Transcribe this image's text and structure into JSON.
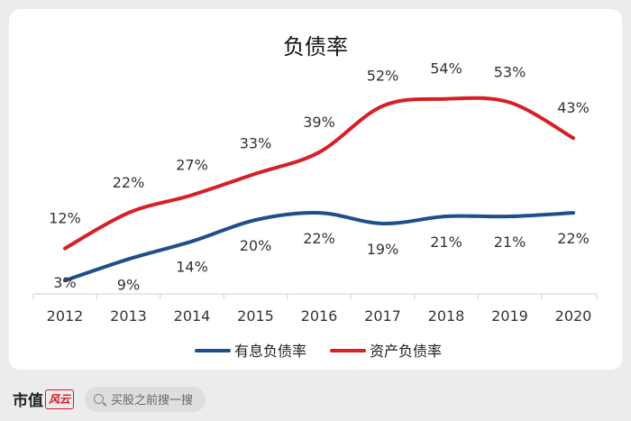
{
  "chart_data": {
    "type": "line",
    "title": "负债率",
    "categories": [
      "2012",
      "2013",
      "2014",
      "2015",
      "2016",
      "2017",
      "2018",
      "2019",
      "2020"
    ],
    "series": [
      {
        "name": "有息负债率",
        "color": "#1f4e8c",
        "values": [
          3,
          9,
          14,
          20,
          22,
          19,
          21,
          21,
          22
        ],
        "labels": [
          "3%",
          "9%",
          "14%",
          "20%",
          "22%",
          "19%",
          "21%",
          "21%",
          "22%"
        ]
      },
      {
        "name": "资产负债率",
        "color": "#d61f26",
        "values": [
          12,
          22,
          27,
          33,
          39,
          52,
          54,
          53,
          43
        ],
        "labels": [
          "12%",
          "22%",
          "27%",
          "33%",
          "39%",
          "52%",
          "54%",
          "53%",
          "43%"
        ]
      }
    ],
    "ylim": [
      0,
      60
    ],
    "legend": "bottom",
    "grid": false
  },
  "footer": {
    "logo_text": "市值",
    "logo_mark": "风云",
    "search_placeholder": "买股之前搜一搜"
  }
}
